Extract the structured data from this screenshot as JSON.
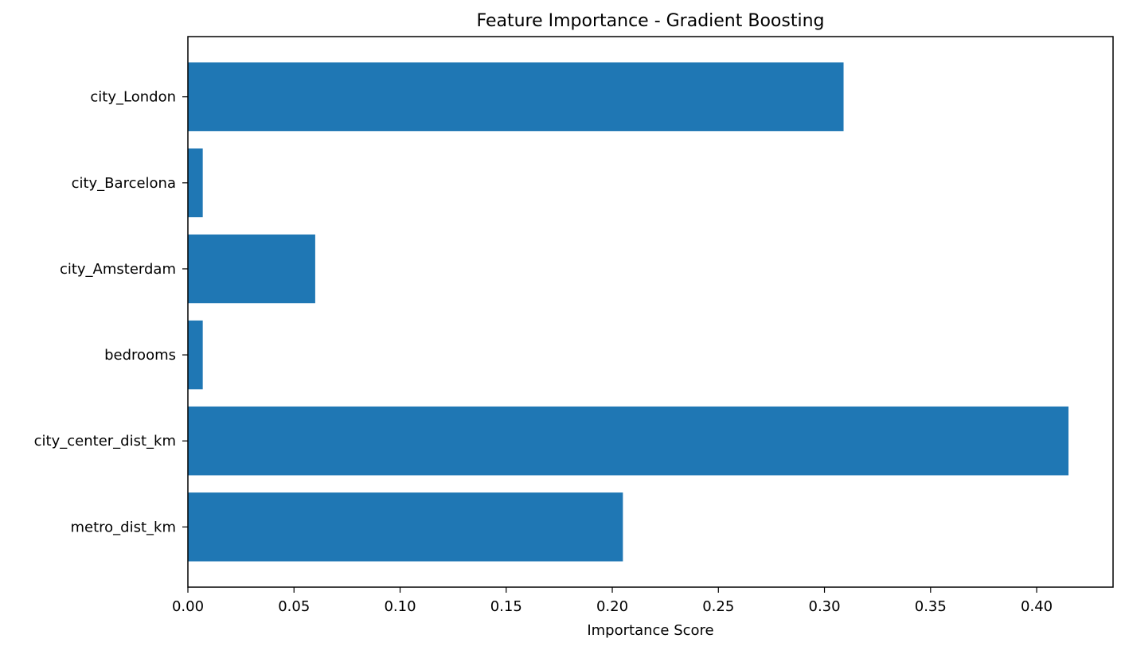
{
  "chart_data": {
    "type": "bar",
    "orientation": "horizontal",
    "title": "Feature Importance - Gradient Boosting",
    "xlabel": "Importance Score",
    "ylabel": "",
    "categories": [
      "metro_dist_km",
      "city_center_dist_km",
      "bedrooms",
      "city_Amsterdam",
      "city_Barcelona",
      "city_London"
    ],
    "values": [
      0.205,
      0.415,
      0.007,
      0.06,
      0.007,
      0.309
    ],
    "xlim": [
      0,
      0.436
    ],
    "xticks": [
      "0.00",
      "0.05",
      "0.10",
      "0.15",
      "0.20",
      "0.25",
      "0.30",
      "0.35",
      "0.40"
    ],
    "xtick_values": [
      0,
      0.05,
      0.1,
      0.15,
      0.2,
      0.25,
      0.3,
      0.35,
      0.4
    ],
    "grid": false,
    "bar_color": "#1f77b4"
  }
}
